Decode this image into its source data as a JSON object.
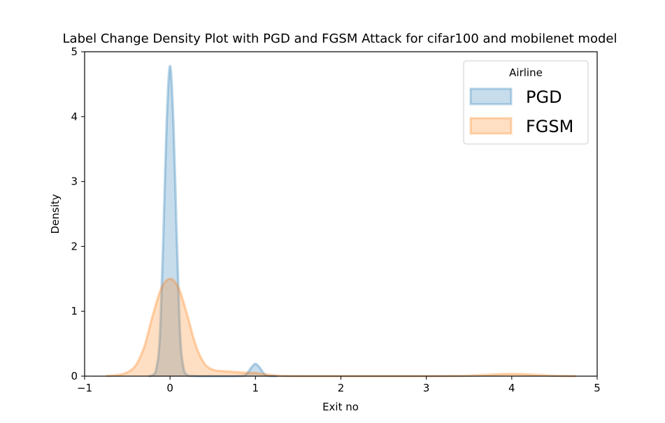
{
  "chart_data": {
    "type": "area",
    "title": "Label Change Density Plot with PGD and FGSM Attack for cifar100 and  mobilenet model",
    "xlabel": "Exit no",
    "ylabel": "Density",
    "xlim": [
      -1,
      5
    ],
    "ylim": [
      0,
      5
    ],
    "xticks": [
      -1,
      0,
      1,
      2,
      3,
      4,
      5
    ],
    "yticks": [
      0,
      1,
      2,
      3,
      4,
      5
    ],
    "xtick_labels": [
      "−1",
      "0",
      "1",
      "2",
      "3",
      "4",
      "5"
    ],
    "ytick_labels": [
      "0",
      "1",
      "2",
      "3",
      "4",
      "5"
    ],
    "grid": false,
    "legend": {
      "title": "Airline",
      "placement": "top-right",
      "entries": [
        "PGD",
        "FGSM"
      ]
    },
    "series": [
      {
        "name": "PGD",
        "color": "#1f77b4",
        "x": [
          -0.25,
          -0.2,
          -0.16,
          -0.12,
          -0.08,
          -0.04,
          0,
          0.04,
          0.08,
          0.12,
          0.16,
          0.2,
          0.25,
          0.35,
          0.5,
          0.7,
          0.85,
          0.9,
          0.95,
          1.0,
          1.05,
          1.1,
          1.15,
          1.25
        ],
        "y": [
          0,
          0.02,
          0.12,
          0.6,
          2.1,
          3.9,
          4.78,
          3.9,
          2.1,
          0.6,
          0.12,
          0.02,
          0.005,
          0,
          0,
          0,
          0.005,
          0.04,
          0.13,
          0.19,
          0.13,
          0.04,
          0.005,
          0
        ]
      },
      {
        "name": "FGSM",
        "color": "#ff7f0e",
        "x": [
          -0.75,
          -0.6,
          -0.5,
          -0.4,
          -0.3,
          -0.2,
          -0.1,
          0,
          0.1,
          0.2,
          0.3,
          0.4,
          0.5,
          0.6,
          0.7,
          0.8,
          0.9,
          1.0,
          1.1,
          1.25,
          1.5,
          2.0,
          2.5,
          3.0,
          3.3,
          3.5,
          3.7,
          3.85,
          4.0,
          4.15,
          4.3,
          4.5,
          4.75
        ],
        "y": [
          0.005,
          0.02,
          0.06,
          0.17,
          0.46,
          0.95,
          1.36,
          1.5,
          1.36,
          0.95,
          0.48,
          0.2,
          0.1,
          0.08,
          0.07,
          0.06,
          0.05,
          0.05,
          0.03,
          0.01,
          0,
          0,
          0,
          0,
          0.002,
          0.008,
          0.02,
          0.03,
          0.035,
          0.03,
          0.02,
          0.007,
          0
        ]
      }
    ]
  }
}
